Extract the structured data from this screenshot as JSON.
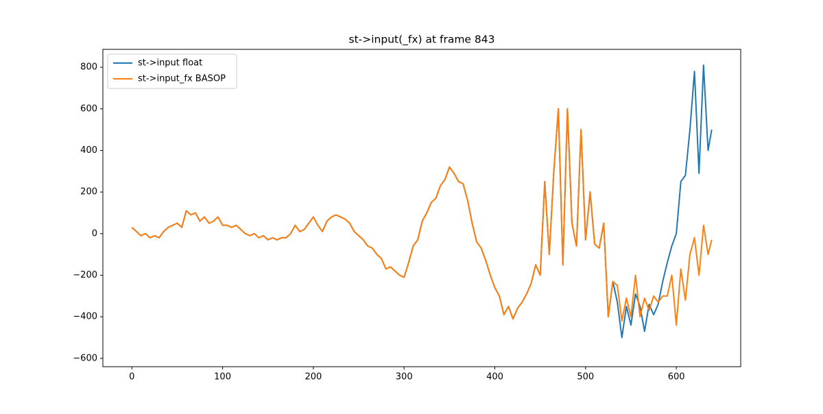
{
  "chart_data": {
    "type": "line",
    "title": "st->input(_fx) at frame 843",
    "x": [
      0,
      5,
      10,
      15,
      20,
      25,
      30,
      35,
      40,
      45,
      50,
      55,
      60,
      65,
      70,
      75,
      80,
      85,
      90,
      95,
      100,
      105,
      110,
      115,
      120,
      125,
      130,
      135,
      140,
      145,
      150,
      155,
      160,
      165,
      170,
      175,
      180,
      185,
      190,
      195,
      200,
      205,
      210,
      215,
      220,
      225,
      230,
      235,
      240,
      245,
      250,
      255,
      260,
      265,
      270,
      275,
      280,
      285,
      290,
      295,
      300,
      305,
      310,
      315,
      320,
      325,
      330,
      335,
      340,
      345,
      350,
      355,
      360,
      365,
      370,
      375,
      380,
      385,
      390,
      395,
      400,
      405,
      410,
      415,
      420,
      425,
      430,
      435,
      440,
      445,
      450,
      455,
      460,
      465,
      470,
      475,
      480,
      485,
      490,
      495,
      500,
      505,
      510,
      515,
      520,
      525,
      530,
      535,
      540,
      545,
      550,
      555,
      560,
      565,
      570,
      575,
      580,
      585,
      590,
      595,
      600,
      605,
      610,
      615,
      620,
      625,
      630,
      635,
      639
    ],
    "series": [
      {
        "name": "st->input float",
        "color": "#1f77b4",
        "values": [
          30,
          10,
          -10,
          0,
          -20,
          -10,
          -20,
          10,
          30,
          40,
          50,
          30,
          110,
          90,
          100,
          60,
          80,
          50,
          60,
          80,
          40,
          40,
          30,
          40,
          20,
          0,
          -10,
          0,
          -20,
          -10,
          -30,
          -20,
          -30,
          -20,
          -20,
          0,
          40,
          10,
          20,
          50,
          80,
          40,
          10,
          60,
          80,
          90,
          80,
          70,
          50,
          10,
          -10,
          -30,
          -60,
          -70,
          -100,
          -120,
          -170,
          -160,
          -180,
          -200,
          -210,
          -140,
          -60,
          -30,
          60,
          100,
          150,
          170,
          230,
          260,
          320,
          290,
          250,
          240,
          160,
          50,
          -40,
          -70,
          -130,
          -200,
          -260,
          -300,
          -390,
          -350,
          -410,
          -360,
          -330,
          -290,
          -240,
          -150,
          -200,
          250,
          -100,
          300,
          600,
          -150,
          600,
          50,
          -60,
          500,
          -30,
          200,
          -50,
          -70,
          50,
          -400,
          -230,
          -330,
          -500,
          -350,
          -440,
          -290,
          -350,
          -470,
          -340,
          -390,
          -340,
          -230,
          -140,
          -60,
          0,
          250,
          280,
          500,
          780,
          290,
          810,
          400,
          500
        ]
      },
      {
        "name": "st->input_fx BASOP",
        "color": "#ff7f0e",
        "values": [
          30,
          10,
          -10,
          0,
          -20,
          -10,
          -20,
          10,
          30,
          40,
          50,
          30,
          110,
          90,
          100,
          60,
          80,
          50,
          60,
          80,
          40,
          40,
          30,
          40,
          20,
          0,
          -10,
          0,
          -20,
          -10,
          -30,
          -20,
          -30,
          -20,
          -20,
          0,
          40,
          10,
          20,
          50,
          80,
          40,
          10,
          60,
          80,
          90,
          80,
          70,
          50,
          10,
          -10,
          -30,
          -60,
          -70,
          -100,
          -120,
          -170,
          -160,
          -180,
          -200,
          -210,
          -140,
          -60,
          -30,
          60,
          100,
          150,
          170,
          230,
          260,
          320,
          290,
          250,
          240,
          160,
          50,
          -40,
          -70,
          -130,
          -200,
          -260,
          -300,
          -390,
          -350,
          -410,
          -360,
          -330,
          -290,
          -240,
          -150,
          -200,
          250,
          -100,
          300,
          600,
          -150,
          600,
          50,
          -60,
          500,
          -30,
          200,
          -50,
          -70,
          50,
          -400,
          -230,
          -250,
          -420,
          -310,
          -400,
          -200,
          -400,
          -310,
          -370,
          -300,
          -330,
          -300,
          -300,
          -200,
          -440,
          -170,
          -320,
          -100,
          -20,
          -200,
          40,
          -100,
          -30
        ]
      }
    ],
    "xlim": [
      -31.95,
      670.95
    ],
    "ylim": [
      -640,
      886
    ],
    "xticks": [
      0,
      100,
      200,
      300,
      400,
      500,
      600
    ],
    "yticks": [
      {
        "value": -600,
        "label": "−600"
      },
      {
        "value": -400,
        "label": "−400"
      },
      {
        "value": -200,
        "label": "−200"
      },
      0,
      200,
      400,
      600,
      800
    ],
    "legend": "upper left"
  }
}
